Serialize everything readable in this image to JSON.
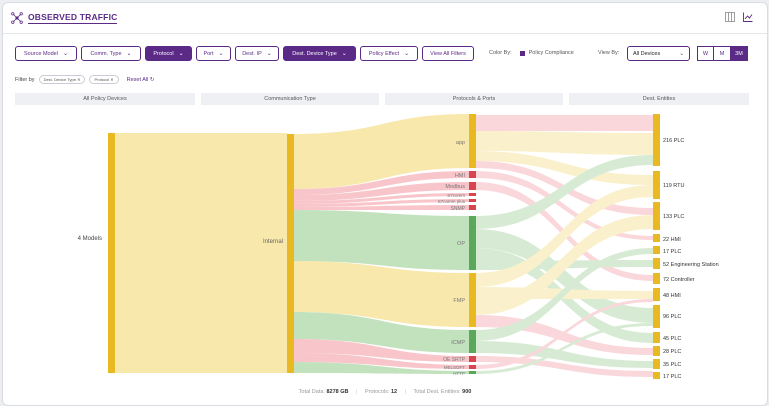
{
  "header": {
    "title": "OBSERVED TRAFFIC",
    "icons": [
      "network-icon",
      "grid-icon",
      "chart-icon"
    ]
  },
  "toolbar": {
    "filters": [
      {
        "label": "Source Model",
        "active": false
      },
      {
        "label": "Comm. Type",
        "active": false
      },
      {
        "label": "Protocol",
        "active": true
      },
      {
        "label": "Port",
        "active": false
      },
      {
        "label": "Dest. IP",
        "active": false
      },
      {
        "label": "Dest. Device Type",
        "active": true
      },
      {
        "label": "Policy Effect",
        "active": false
      }
    ],
    "view_all": "View All Filters",
    "color_by_label": "Color By:",
    "color_by_value": "Policy Compliance",
    "view_by_label": "View By:",
    "view_by_value": "All Devices",
    "ranges": [
      "W",
      "M",
      "3M"
    ],
    "active_range": "3M"
  },
  "filter_row": {
    "label": "Filter by",
    "chips": [
      "Dest. Device Type",
      "Protocol"
    ],
    "reset": "Reset All"
  },
  "columns": [
    "All Policy Devices",
    "Communication Type",
    "Protocols & Ports",
    "Dest. Entities"
  ],
  "sankey": {
    "sources": [
      "4 Models"
    ],
    "comm_types": [
      "Internal"
    ],
    "protocols": [
      "app",
      "HMI",
      "Modbus",
      "S7comm",
      "S7comm plus",
      "SNMP",
      "OP",
      "FMP",
      "ICMP",
      "OE SRTP",
      "MELSOFT",
      "HTTP"
    ],
    "destinations": [
      "216 PLC",
      "119 RTU",
      "133 PLC",
      "22 HMI",
      "17 PLC",
      "52 Engineering Station",
      "72 Controller",
      "48 HMI",
      "96 PLC",
      "45 PLC",
      "28 PLC",
      "35 PLC",
      "17 PLC"
    ]
  },
  "footer": {
    "total_data_label": "Total Data:",
    "total_data": "8278 GB",
    "protocols_label": "Protocols:",
    "protocols": "12",
    "dest_label": "Total Dest. Entities:",
    "dest": "900"
  },
  "colors": {
    "accent": "#5b2a86",
    "node": "#e8b923",
    "compliant": "#f7e6a3",
    "violation": "#f6b7bd",
    "allowed": "#b7dcb1",
    "green_node": "#5aa85a",
    "red_node": "#d64550"
  }
}
